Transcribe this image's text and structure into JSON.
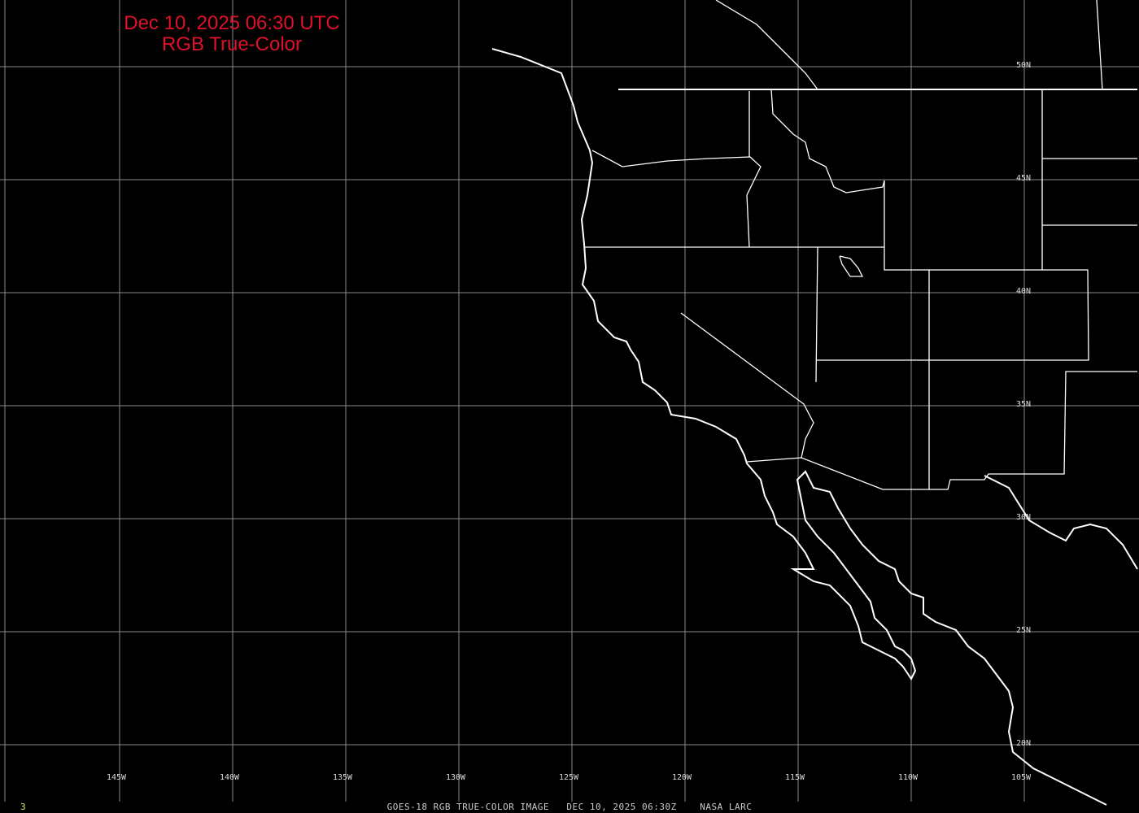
{
  "title": {
    "line1": "Dec 10, 2025 06:30 UTC",
    "line2": "RGB True-Color"
  },
  "footer": {
    "caption": "GOES-18 RGB TRUE-COLOR IMAGE   DEC 10, 2025 06:30Z    NASA LARC",
    "frame_number": "3"
  },
  "grid": {
    "longitude_labels": [
      "145W",
      "140W",
      "135W",
      "130W",
      "125W",
      "120W",
      "115W",
      "110W",
      "105W"
    ],
    "latitude_labels": [
      "50N",
      "45N",
      "40N",
      "35N",
      "30N",
      "25N",
      "20N"
    ]
  },
  "colors": {
    "title": "#e0102a",
    "grid": "#8a8a8a",
    "coastline": "#ffffff",
    "background": "#000000",
    "frame_number": "#e8e060"
  }
}
